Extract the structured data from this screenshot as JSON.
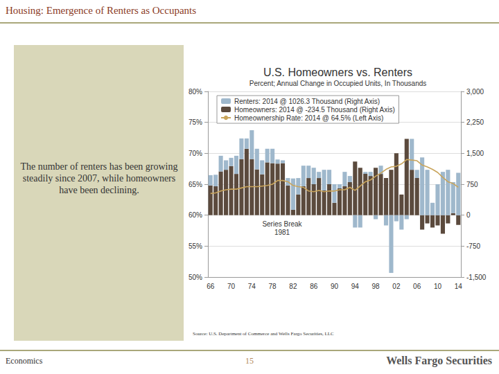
{
  "page": {
    "header": "Housing: Emergence of Renters as Occupants",
    "note": "The number of renters has been growing steadily since 2007, while homeowners have been declining.",
    "source": "Source: U.S. Department of Commerce and Wells Fargo Securities, LLC",
    "footer": "Economics",
    "page_number": 15,
    "brand": "Wells Fargo Securities"
  },
  "chart_data": {
    "type": "bar",
    "title": "U.S. Homeowners vs. Renters",
    "subtitle": "Percent; Annual Change in Occupied Units, In Thousands",
    "categories": [
      "66",
      null,
      null,
      null,
      "70",
      null,
      null,
      null,
      "74",
      null,
      null,
      null,
      "78",
      null,
      null,
      null,
      "82",
      null,
      null,
      null,
      "86",
      null,
      null,
      null,
      "90",
      null,
      null,
      null,
      "94",
      null,
      null,
      null,
      "98",
      null,
      null,
      null,
      "02",
      null,
      null,
      null,
      "06",
      null,
      null,
      null,
      "10",
      null,
      null,
      null,
      "14"
    ],
    "series": [
      {
        "name": "Renters: 2014 @ 1026.3 Thousand (Right Axis)",
        "type": "bar",
        "axis": "y2",
        "color": "#9fb8cc",
        "values": [
          250,
          280,
          380,
          230,
          200,
          440,
          500,
          250,
          700,
          500,
          340,
          330,
          350,
          100,
          70,
          180,
          760,
          400,
          500,
          300,
          400,
          150,
          500,
          350,
          450,
          100,
          350,
          150,
          -300,
          -300,
          50,
          100,
          -100,
          200,
          -250,
          -1400,
          -150,
          -350,
          -100,
          750,
          200,
          1400,
          1100,
          300,
          750,
          1050,
          1100,
          750,
          1026.3
        ]
      },
      {
        "name": "Homeowners: 2014 @ -234.5 Thousand (Right Axis)",
        "type": "bar",
        "axis": "y2",
        "color": "#5b4a3d",
        "values": [
          720,
          700,
          1060,
          1100,
          1190,
          1000,
          1360,
          1610,
          1360,
          1110,
          990,
          1280,
          1260,
          1250,
          1260,
          720,
          130,
          500,
          700,
          900,
          750,
          900,
          600,
          750,
          300,
          650,
          700,
          800,
          1300,
          1150,
          1000,
          950,
          1150,
          1000,
          900,
          1100,
          1500,
          500,
          1850,
          1100,
          900,
          -350,
          -200,
          -300,
          -250,
          -450,
          -200,
          50,
          -234.5
        ]
      },
      {
        "name": "Homeownership Rate: 2014 @ 64.5% (Left Axis)",
        "type": "line",
        "color": "#c9a55c",
        "values": [
          63.5,
          63.6,
          63.9,
          64.1,
          64.2,
          64.2,
          64.4,
          64.6,
          64.6,
          64.6,
          64.7,
          64.8,
          65.0,
          65.6,
          65.6,
          65.4,
          64.8,
          64.6,
          64.5,
          63.9,
          63.8,
          64.0,
          63.8,
          63.9,
          63.9,
          64.1,
          64.1,
          64.5,
          64.0,
          64.7,
          65.4,
          65.7,
          66.3,
          66.8,
          67.4,
          67.8,
          67.9,
          68.3,
          69.0,
          68.9,
          68.8,
          68.1,
          67.8,
          67.4,
          66.9,
          66.1,
          65.4,
          65.1,
          64.5
        ]
      }
    ],
    "ylim": [
      50,
      80
    ],
    "yticks": [
      {
        "value": 50,
        "label": "50%"
      },
      {
        "value": 55,
        "label": "55%"
      },
      {
        "value": 60,
        "label": "60%"
      },
      {
        "value": 65,
        "label": "65%"
      },
      {
        "value": 70,
        "label": "70%"
      },
      {
        "value": 75,
        "label": "75%"
      },
      {
        "value": 80,
        "label": "80%"
      }
    ],
    "y2lim": [
      -1500,
      3000
    ],
    "y2ticks": [
      {
        "value": -1500,
        "label": "-1,500"
      },
      -750,
      0,
      750,
      {
        "value": 1500,
        "label": "1,500"
      },
      {
        "value": 2250,
        "label": "2,250"
      },
      {
        "value": 3000,
        "label": "3,000"
      }
    ],
    "stacked": true,
    "grid": true,
    "legend": "upper left",
    "annotations": [
      "Series Break\n1981"
    ]
  }
}
